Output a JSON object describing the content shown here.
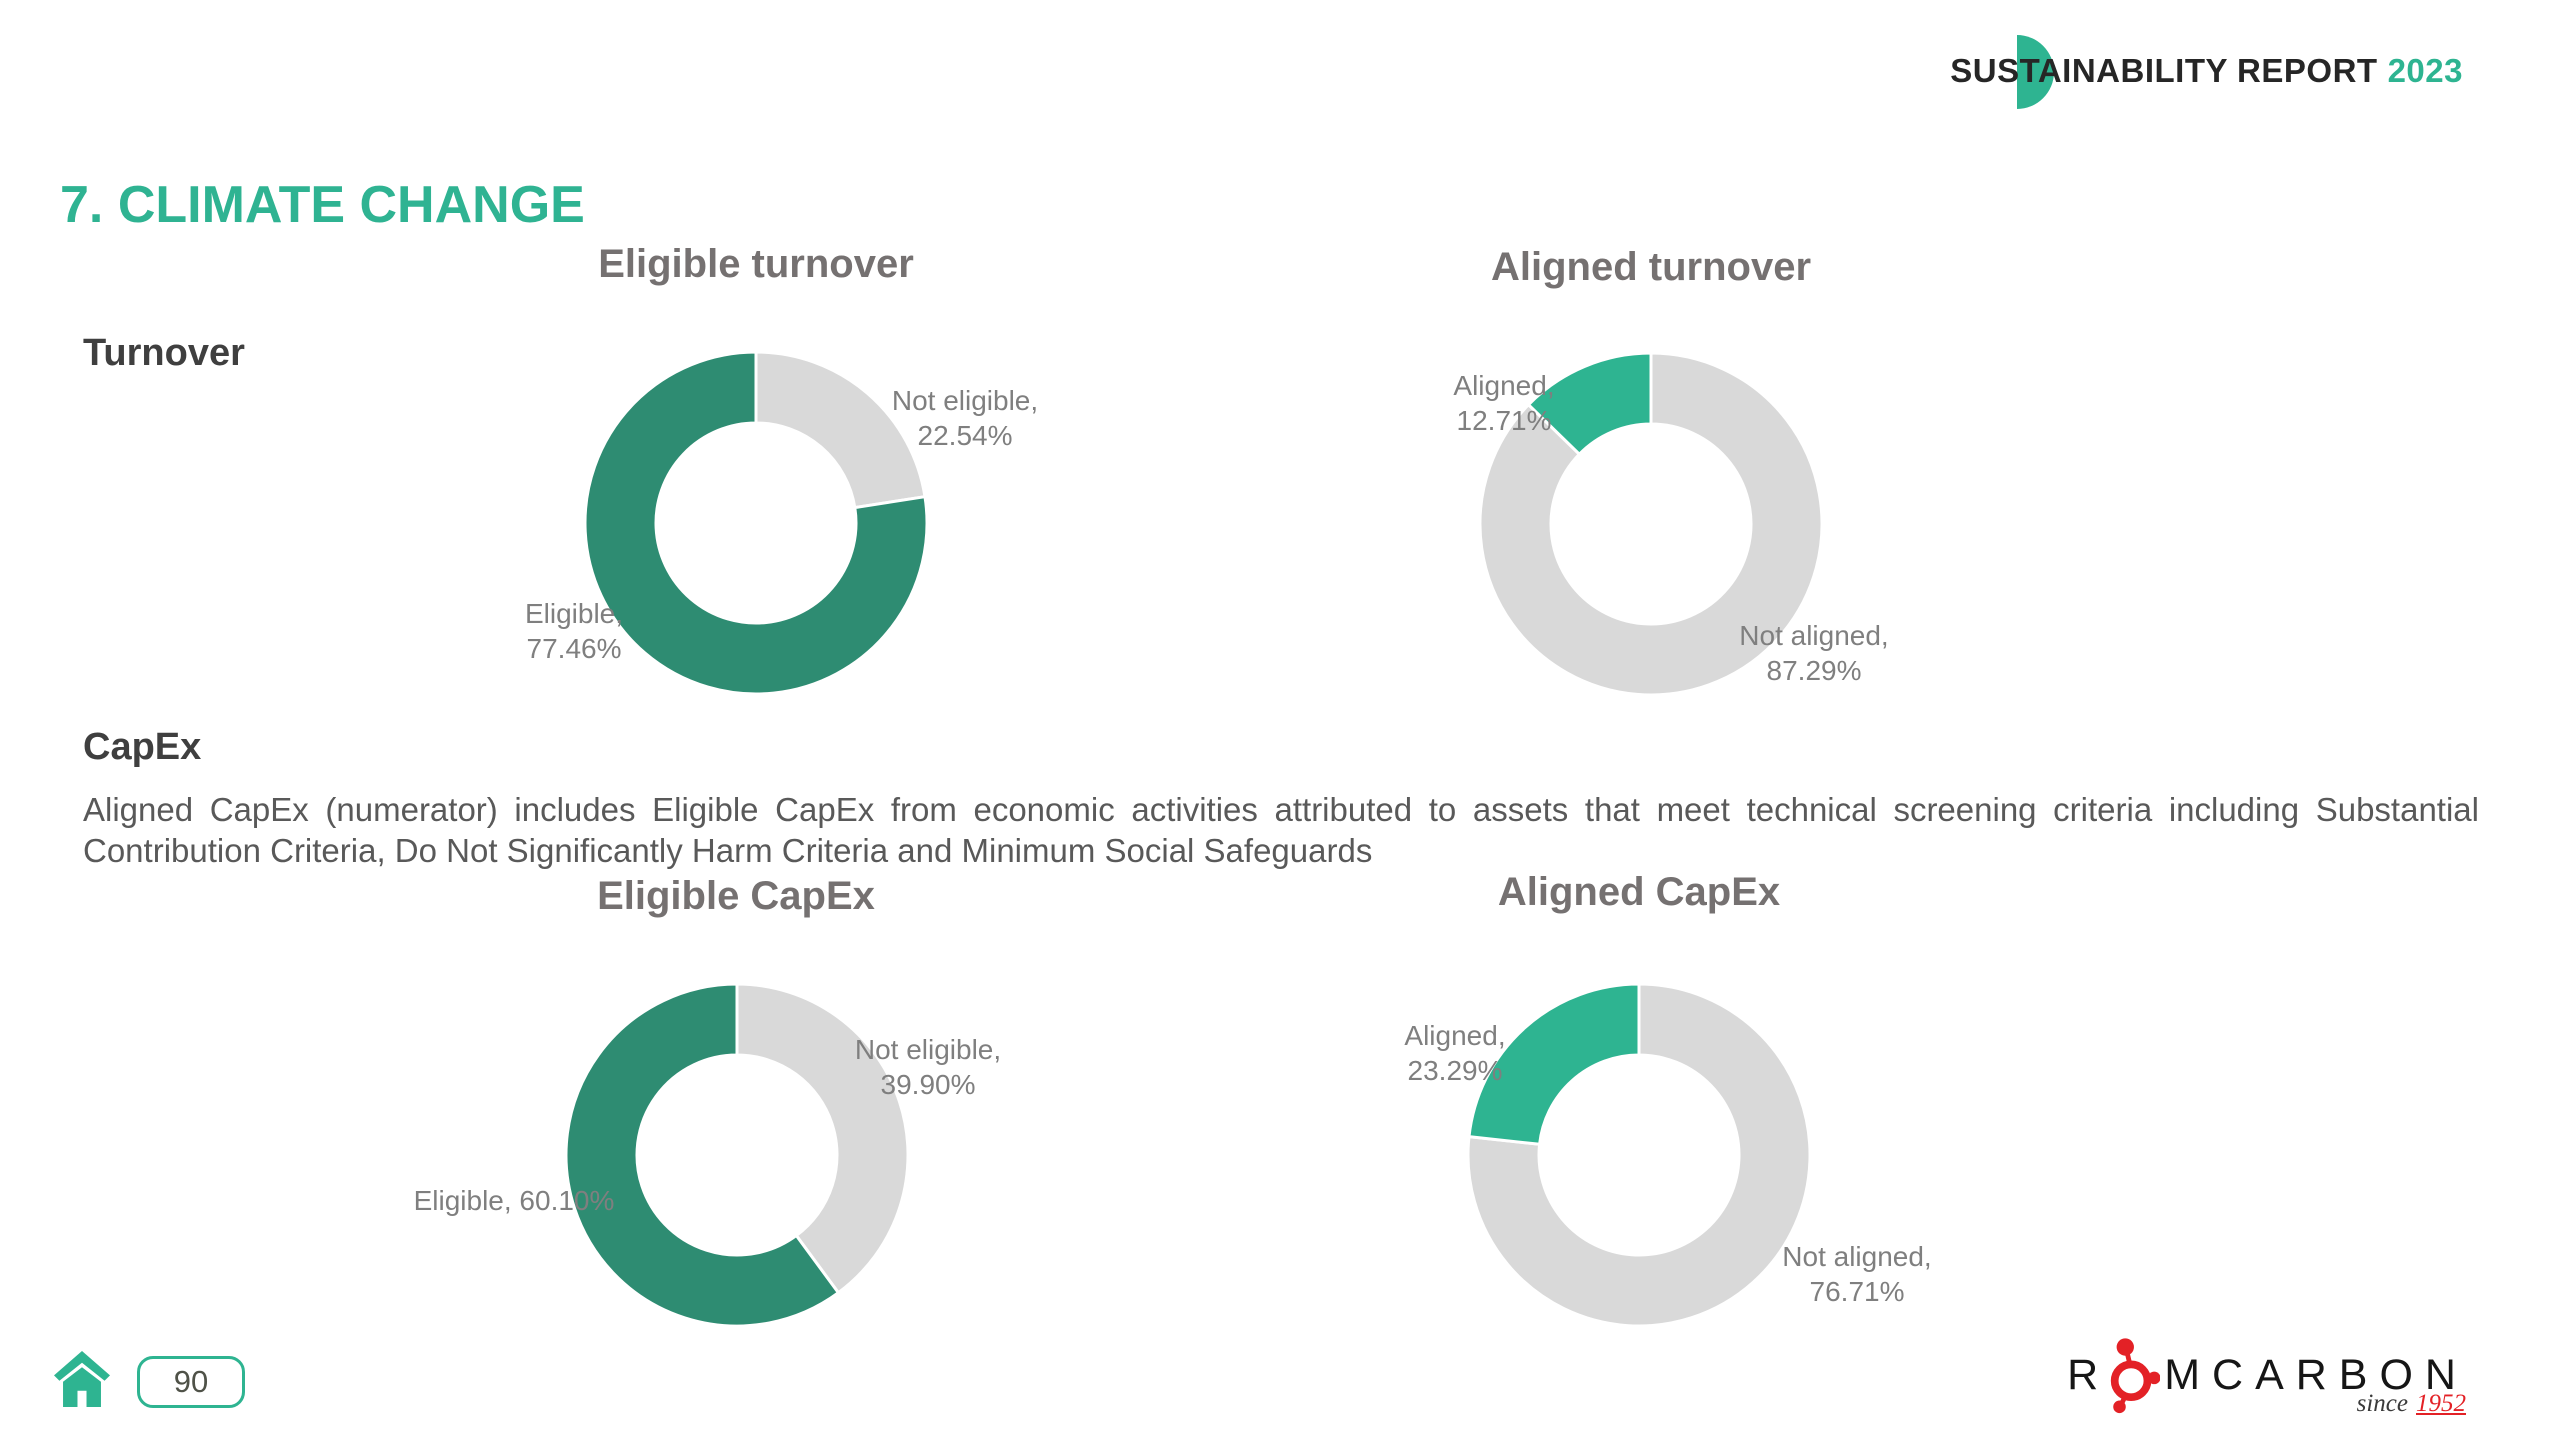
{
  "header": {
    "title": "SUSTAINABILITY REPORT",
    "year": "2023"
  },
  "page": {
    "title": "7. CLIMATE CHANGE",
    "number": "90"
  },
  "sections": {
    "turnover": {
      "label": "Turnover"
    },
    "capex": {
      "label": "CapEx",
      "description": "Aligned CapEx (numerator) includes Eligible CapEx from economic activities attributed to assets that meet technical screening criteria including Substantial Contribution Criteria, Do Not Significantly Harm Criteria and Minimum Social Safeguards"
    }
  },
  "chart_data": [
    {
      "type": "pie",
      "subtype": "donut",
      "title": "Eligible turnover",
      "legend": "none",
      "start_angle": "12 o'clock, clockwise",
      "segments": [
        {
          "label": "Not eligible",
          "value": "22.54%",
          "pct": 22.54,
          "color": "#D9D9D9"
        },
        {
          "label": "Eligible",
          "value": "77.46%",
          "pct": 77.46,
          "color": "#2E8C72"
        }
      ]
    },
    {
      "type": "pie",
      "subtype": "donut",
      "title": "Aligned turnover",
      "legend": "none",
      "start_angle": "12 o'clock, clockwise",
      "segments": [
        {
          "label": "Not aligned",
          "value": "87.29%",
          "pct": 87.29,
          "color": "#D9D9D9"
        },
        {
          "label": "Aligned",
          "value": "12.71%",
          "pct": 12.71,
          "color": "#2EB491"
        }
      ]
    },
    {
      "type": "pie",
      "subtype": "donut",
      "title": "Eligible CapEx",
      "legend": "none",
      "start_angle": "12 o'clock, clockwise",
      "segments": [
        {
          "label": "Not eligible",
          "value": "39.90%",
          "pct": 39.9,
          "color": "#D9D9D9"
        },
        {
          "label": "Eligible",
          "value": "60.10%",
          "pct": 60.1,
          "color": "#2E8C72"
        }
      ]
    },
    {
      "type": "pie",
      "subtype": "donut",
      "title": "Aligned CapEx",
      "legend": "none",
      "start_angle": "12 o'clock, clockwise",
      "segments": [
        {
          "label": "Not aligned",
          "value": "76.71%",
          "pct": 76.71,
          "color": "#D9D9D9"
        },
        {
          "label": "Aligned",
          "value": "23.29%",
          "pct": 23.29,
          "color": "#2EB491"
        }
      ]
    }
  ],
  "footer": {
    "logo": {
      "prefix": "R",
      "suffix": "MCARBON",
      "since": "since",
      "since_year": "1952"
    }
  },
  "colors": {
    "accent": "#2EB491",
    "dark_teal": "#2E8C72",
    "slice_gray": "#D9D9D9",
    "logo_red": "#E32126"
  }
}
